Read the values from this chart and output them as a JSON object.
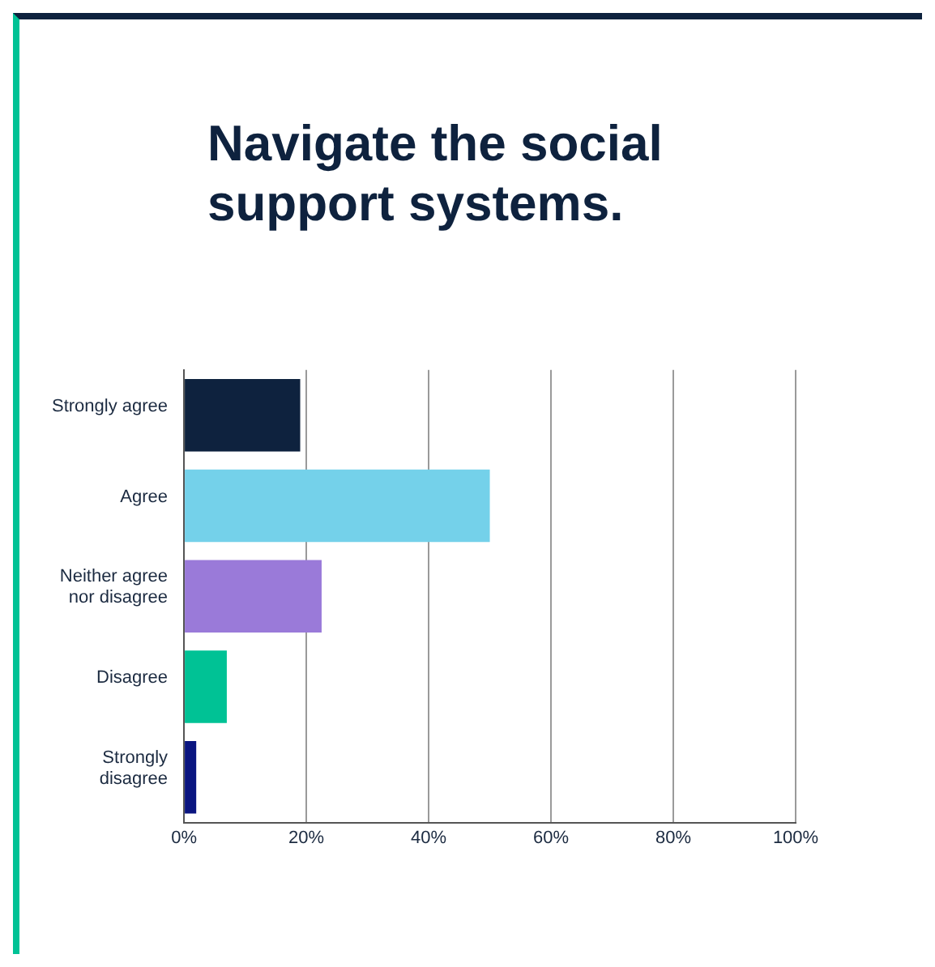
{
  "chart_data": {
    "type": "bar",
    "orientation": "horizontal",
    "title": "Navigate the social support systems.",
    "categories": [
      "Strongly agree",
      "Agree",
      "Neither agree nor disagree",
      "Disagree",
      "Strongly disagree"
    ],
    "values": [
      19,
      50,
      22.5,
      7,
      2
    ],
    "colors": [
      "#0e223e",
      "#74d1ea",
      "#9a7ad9",
      "#00c295",
      "#0a1580"
    ],
    "xlim": [
      0,
      100
    ],
    "xticks": [
      {
        "value": 0,
        "label": "0%"
      },
      {
        "value": 20,
        "label": "20%"
      },
      {
        "value": 40,
        "label": "40%"
      },
      {
        "value": 60,
        "label": "60%"
      },
      {
        "value": 80,
        "label": "80%"
      },
      {
        "value": 100,
        "label": "100%"
      }
    ],
    "grid": "x",
    "legend": false
  }
}
